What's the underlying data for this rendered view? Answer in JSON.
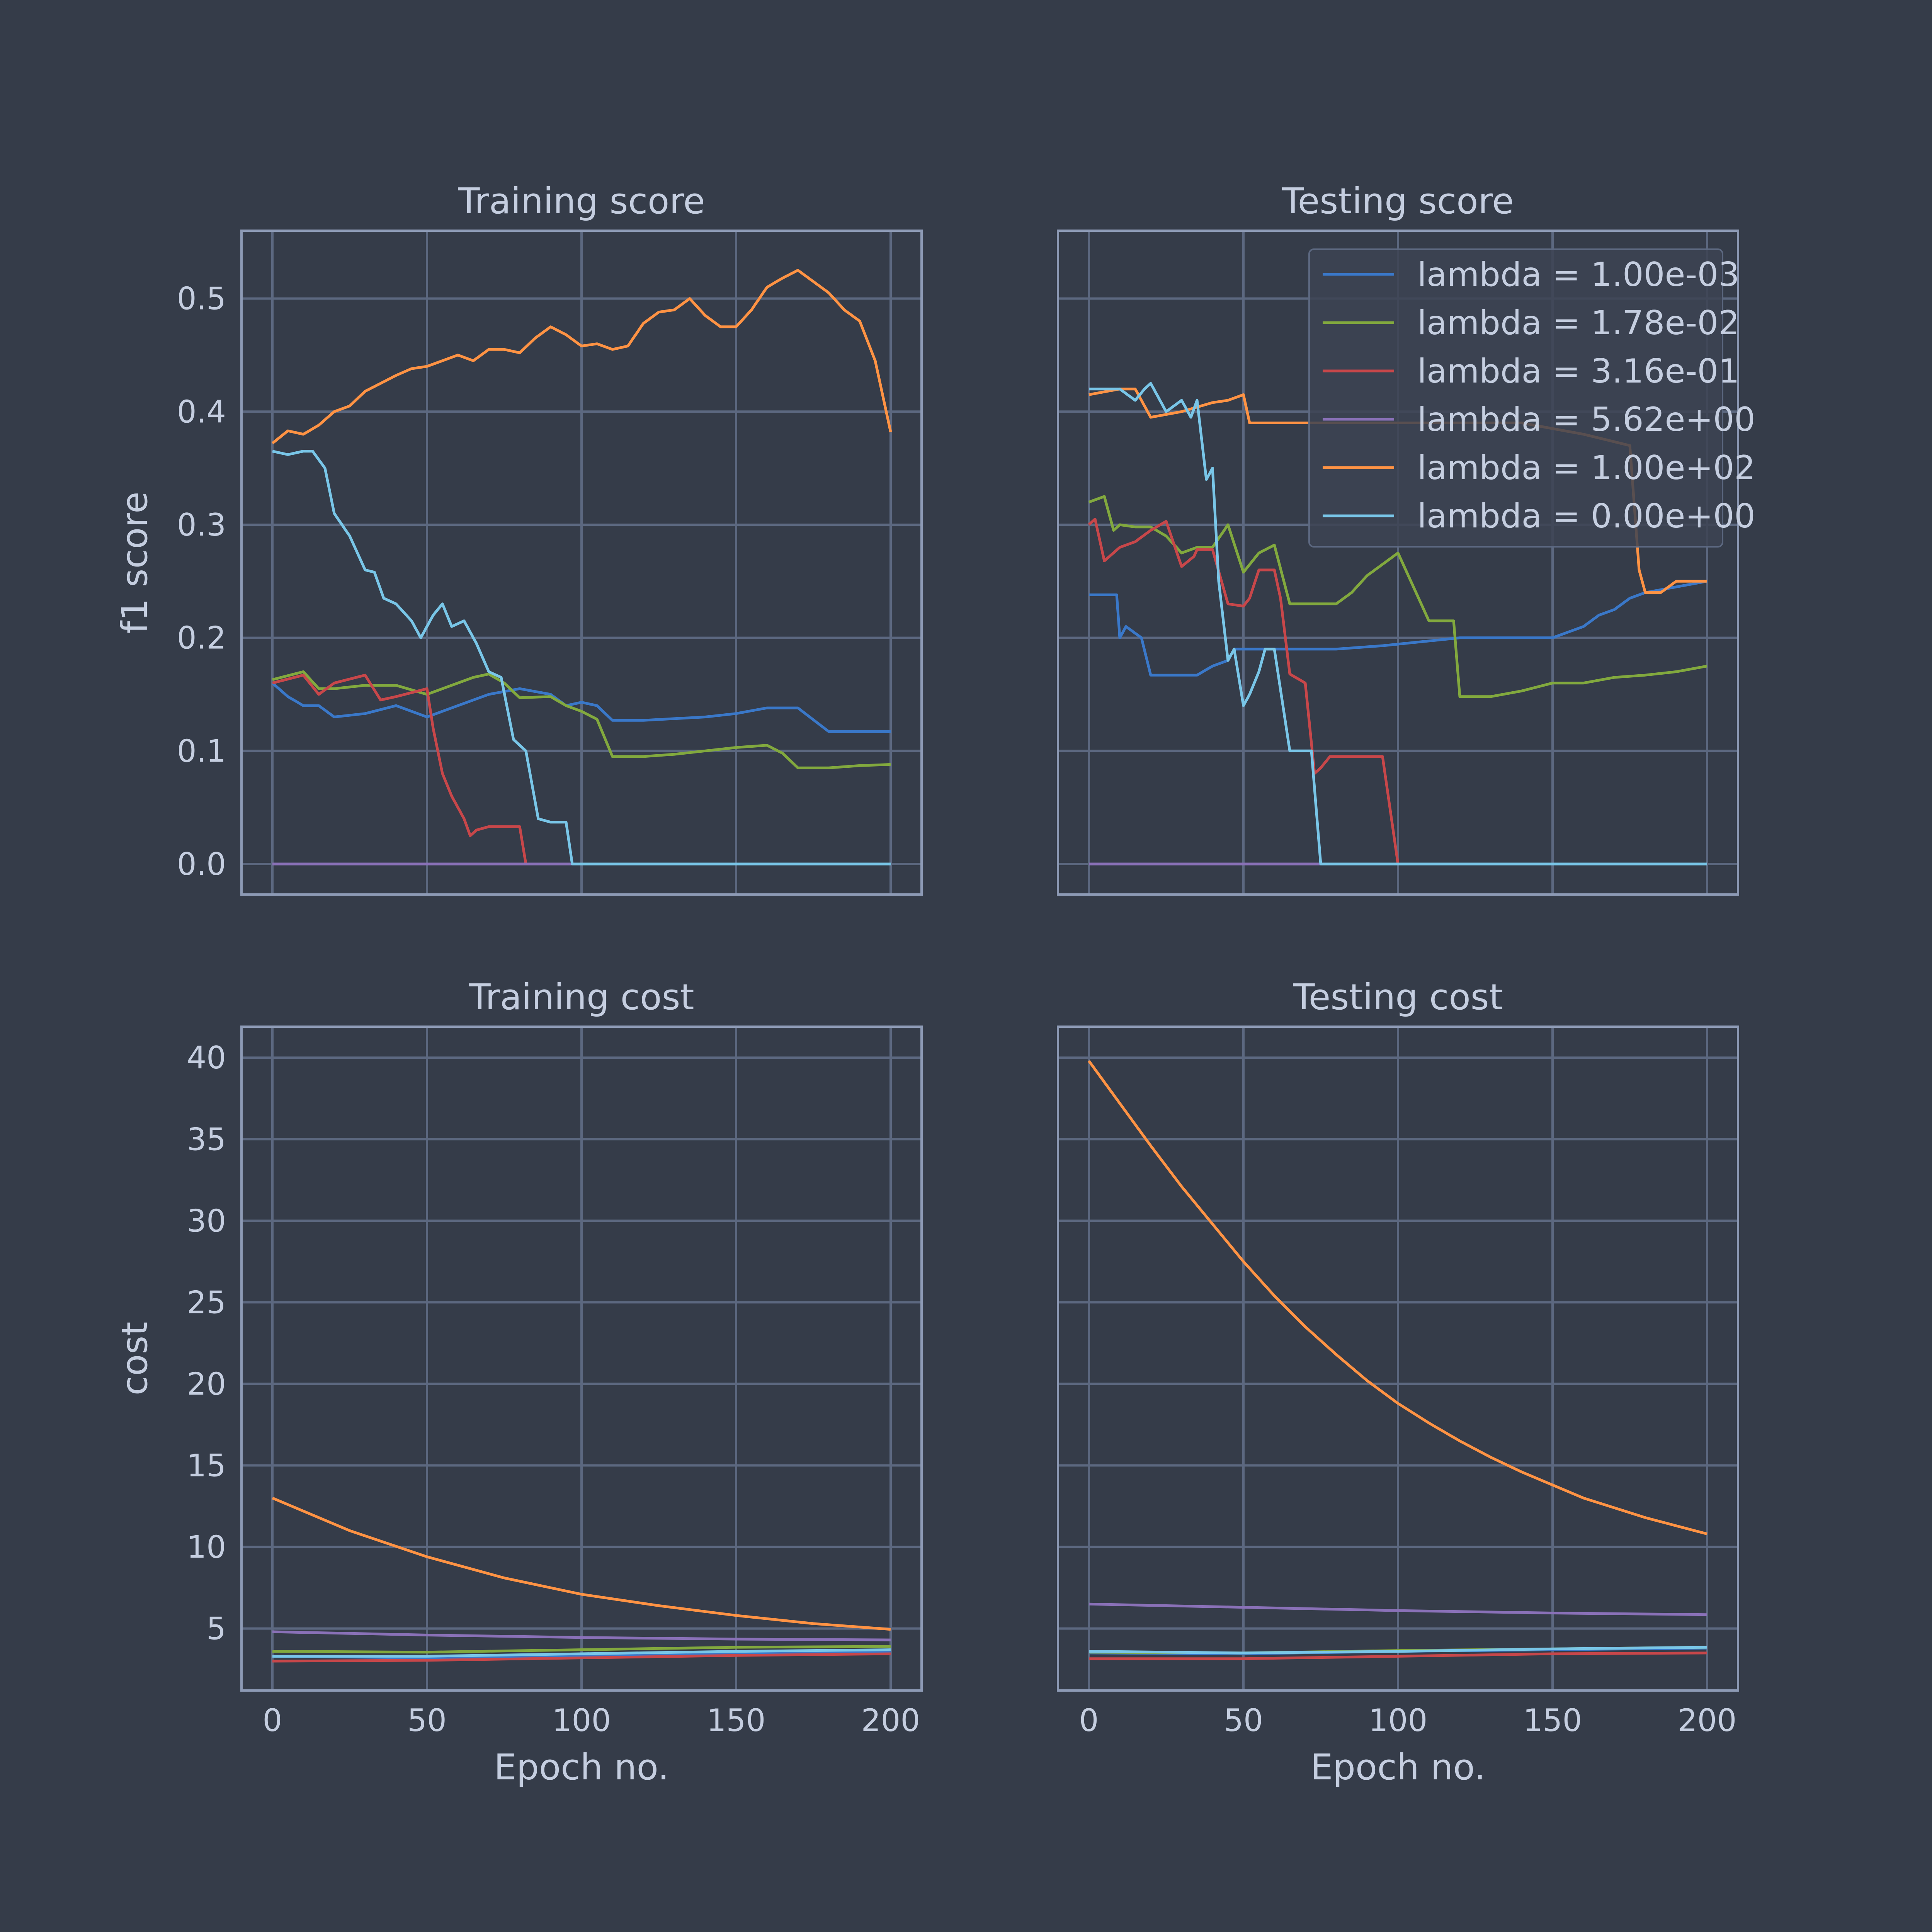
{
  "figure": {
    "background": "#353c49",
    "axes_background": "#353c49",
    "grid_color": "#5c6880",
    "spine_color": "#8d9ab5",
    "text_color": "#c5cee0"
  },
  "series_styles": [
    {
      "name": "lambda = 1.00e-03",
      "color": "#3a78c9"
    },
    {
      "name": "lambda = 1.78e-02",
      "color": "#82a93e"
    },
    {
      "name": "lambda = 3.16e-01",
      "color": "#c8474a"
    },
    {
      "name": "lambda = 5.62e+00",
      "color": "#8a71b8"
    },
    {
      "name": "lambda = 1.00e+02",
      "color": "#ff9344"
    },
    {
      "name": "lambda = 0.00e+00",
      "color": "#79c6e8"
    }
  ],
  "chart_data": [
    {
      "type": "line",
      "title": "Training score",
      "xlabel": "",
      "ylabel": "f1 score",
      "xlim": [
        -10,
        210
      ],
      "ylim": [
        -0.027,
        0.56
      ],
      "xticks": [
        0,
        50,
        100,
        150,
        200
      ],
      "xtick_labels": [],
      "yticks": [
        0.0,
        0.1,
        0.2,
        0.3,
        0.4,
        0.5
      ],
      "ytick_labels": [
        "0.0",
        "0.1",
        "0.2",
        "0.3",
        "0.4",
        "0.5"
      ],
      "grid": true,
      "legend": null,
      "series": [
        {
          "x": [
            0,
            5,
            10,
            15,
            20,
            30,
            40,
            50,
            60,
            70,
            80,
            90,
            95,
            100,
            105,
            110,
            120,
            140,
            150,
            160,
            170,
            180,
            190,
            200
          ],
          "y": [
            0.16,
            0.148,
            0.14,
            0.14,
            0.13,
            0.133,
            0.14,
            0.13,
            0.14,
            0.15,
            0.155,
            0.15,
            0.14,
            0.143,
            0.14,
            0.127,
            0.127,
            0.13,
            0.133,
            0.138,
            0.138,
            0.117,
            0.117,
            0.117
          ]
        },
        {
          "x": [
            0,
            10,
            15,
            20,
            30,
            40,
            50,
            60,
            65,
            70,
            75,
            80,
            90,
            95,
            100,
            105,
            110,
            120,
            130,
            140,
            150,
            160,
            165,
            170,
            180,
            190,
            200
          ],
          "y": [
            0.163,
            0.17,
            0.155,
            0.155,
            0.158,
            0.158,
            0.15,
            0.16,
            0.165,
            0.168,
            0.16,
            0.147,
            0.148,
            0.14,
            0.135,
            0.128,
            0.095,
            0.095,
            0.097,
            0.1,
            0.103,
            0.105,
            0.098,
            0.085,
            0.085,
            0.087,
            0.088
          ]
        },
        {
          "x": [
            0,
            10,
            15,
            20,
            30,
            35,
            40,
            50,
            52,
            55,
            58,
            60,
            62,
            64,
            66,
            70,
            75,
            80,
            82
          ],
          "y": [
            0.16,
            0.167,
            0.15,
            0.16,
            0.167,
            0.145,
            0.148,
            0.155,
            0.12,
            0.08,
            0.06,
            0.05,
            0.04,
            0.025,
            0.03,
            0.033,
            0.033,
            0.033,
            0.0
          ]
        },
        {
          "x": [
            0,
            200
          ],
          "y": [
            0.0,
            0.0
          ]
        },
        {
          "x": [
            0,
            5,
            10,
            15,
            20,
            25,
            30,
            35,
            40,
            45,
            50,
            55,
            60,
            65,
            70,
            75,
            80,
            85,
            90,
            95,
            100,
            105,
            110,
            115,
            120,
            125,
            130,
            135,
            140,
            145,
            150,
            155,
            160,
            165,
            170,
            175,
            180,
            185,
            190,
            195,
            200
          ],
          "y": [
            0.372,
            0.383,
            0.38,
            0.388,
            0.4,
            0.405,
            0.418,
            0.425,
            0.432,
            0.438,
            0.44,
            0.445,
            0.45,
            0.445,
            0.455,
            0.455,
            0.452,
            0.465,
            0.475,
            0.468,
            0.458,
            0.46,
            0.455,
            0.458,
            0.478,
            0.488,
            0.49,
            0.5,
            0.485,
            0.475,
            0.475,
            0.49,
            0.51,
            0.518,
            0.525,
            0.515,
            0.505,
            0.49,
            0.48,
            0.445,
            0.382
          ]
        },
        {
          "x": [
            0,
            5,
            10,
            13,
            17,
            20,
            25,
            30,
            33,
            36,
            40,
            45,
            48,
            52,
            55,
            58,
            62,
            66,
            70,
            74,
            78,
            82,
            86,
            90,
            95,
            97,
            100,
            120,
            150,
            200
          ],
          "y": [
            0.365,
            0.362,
            0.365,
            0.365,
            0.35,
            0.31,
            0.29,
            0.26,
            0.258,
            0.235,
            0.23,
            0.215,
            0.2,
            0.22,
            0.23,
            0.21,
            0.215,
            0.195,
            0.17,
            0.165,
            0.11,
            0.1,
            0.04,
            0.037,
            0.037,
            0.0,
            0.0,
            0.0,
            0.0,
            0.0
          ]
        }
      ]
    },
    {
      "type": "line",
      "title": "Testing score",
      "xlabel": "",
      "ylabel": "",
      "xlim": [
        -10,
        210
      ],
      "ylim": [
        -0.027,
        0.56
      ],
      "xticks": [
        0,
        50,
        100,
        150,
        200
      ],
      "xtick_labels": [],
      "yticks": [
        0.0,
        0.1,
        0.2,
        0.3,
        0.4,
        0.5
      ],
      "ytick_labels": [],
      "grid": true,
      "legend": "upper right",
      "series": [
        {
          "x": [
            0,
            9,
            10,
            12,
            17,
            20,
            25,
            35,
            40,
            45,
            47,
            50,
            55,
            60,
            65,
            80,
            90,
            95,
            120,
            150,
            160,
            165,
            170,
            175,
            180,
            200
          ],
          "y": [
            0.238,
            0.238,
            0.2,
            0.21,
            0.2,
            0.167,
            0.167,
            0.167,
            0.175,
            0.18,
            0.19,
            0.19,
            0.19,
            0.19,
            0.19,
            0.19,
            0.192,
            0.193,
            0.2,
            0.2,
            0.21,
            0.22,
            0.225,
            0.235,
            0.24,
            0.25
          ]
        },
        {
          "x": [
            0,
            5,
            8,
            10,
            15,
            20,
            25,
            30,
            35,
            40,
            45,
            50,
            55,
            60,
            65,
            80,
            85,
            90,
            95,
            100,
            110,
            115,
            118,
            120,
            130,
            140,
            150,
            160,
            170,
            180,
            190,
            200
          ],
          "y": [
            0.32,
            0.325,
            0.295,
            0.3,
            0.298,
            0.298,
            0.29,
            0.275,
            0.28,
            0.28,
            0.3,
            0.258,
            0.275,
            0.282,
            0.23,
            0.23,
            0.24,
            0.255,
            0.265,
            0.275,
            0.215,
            0.215,
            0.215,
            0.148,
            0.148,
            0.153,
            0.16,
            0.16,
            0.165,
            0.167,
            0.17,
            0.175
          ]
        },
        {
          "x": [
            0,
            2,
            5,
            10,
            15,
            20,
            25,
            30,
            34,
            35,
            40,
            45,
            50,
            52,
            55,
            60,
            62,
            65,
            70,
            73,
            75,
            78,
            82,
            85,
            90,
            95,
            100,
            200
          ],
          "y": [
            0.3,
            0.305,
            0.268,
            0.28,
            0.285,
            0.295,
            0.303,
            0.263,
            0.272,
            0.278,
            0.278,
            0.23,
            0.228,
            0.235,
            0.26,
            0.26,
            0.235,
            0.168,
            0.16,
            0.08,
            0.085,
            0.095,
            0.095,
            0.095,
            0.095,
            0.095,
            0.0,
            0.0
          ]
        },
        {
          "x": [
            0,
            200
          ],
          "y": [
            0.0,
            0.0
          ]
        },
        {
          "x": [
            0,
            10,
            15,
            20,
            30,
            40,
            45,
            50,
            52,
            60,
            80,
            100,
            120,
            140,
            160,
            175,
            178,
            180,
            185,
            190,
            200
          ],
          "y": [
            0.415,
            0.42,
            0.42,
            0.395,
            0.4,
            0.408,
            0.41,
            0.415,
            0.39,
            0.39,
            0.39,
            0.39,
            0.39,
            0.39,
            0.38,
            0.37,
            0.26,
            0.24,
            0.24,
            0.25,
            0.25
          ]
        },
        {
          "x": [
            0,
            5,
            10,
            15,
            18,
            20,
            25,
            30,
            33,
            35,
            38,
            40,
            42,
            45,
            47,
            50,
            52,
            55,
            57,
            60,
            65,
            70,
            72,
            75,
            80,
            100,
            150,
            200
          ],
          "y": [
            0.42,
            0.42,
            0.42,
            0.41,
            0.42,
            0.425,
            0.4,
            0.41,
            0.395,
            0.41,
            0.34,
            0.35,
            0.25,
            0.18,
            0.19,
            0.14,
            0.15,
            0.17,
            0.19,
            0.19,
            0.1,
            0.1,
            0.1,
            0.0,
            0.0,
            0.0,
            0.0,
            0.0
          ]
        }
      ]
    },
    {
      "type": "line",
      "title": "Training cost",
      "xlabel": "Epoch no.",
      "ylabel": "cost",
      "xlim": [
        -10,
        210
      ],
      "ylim": [
        1.2,
        41.9
      ],
      "xticks": [
        0,
        50,
        100,
        150,
        200
      ],
      "xtick_labels": [
        "0",
        "50",
        "100",
        "150",
        "200"
      ],
      "yticks": [
        5,
        10,
        15,
        20,
        25,
        30,
        35,
        40
      ],
      "ytick_labels": [
        "5",
        "10",
        "15",
        "20",
        "25",
        "30",
        "35",
        "40"
      ],
      "grid": true,
      "legend": null,
      "series": [
        {
          "x": [
            0,
            50,
            100,
            150,
            200
          ],
          "y": [
            3.3,
            3.2,
            3.35,
            3.5,
            3.6
          ]
        },
        {
          "x": [
            0,
            50,
            100,
            150,
            200
          ],
          "y": [
            3.6,
            3.55,
            3.7,
            3.85,
            3.9
          ]
        },
        {
          "x": [
            0,
            50,
            100,
            150,
            200
          ],
          "y": [
            3.0,
            3.05,
            3.2,
            3.35,
            3.45
          ]
        },
        {
          "x": [
            0,
            50,
            100,
            150,
            200
          ],
          "y": [
            4.8,
            4.6,
            4.45,
            4.35,
            4.3
          ]
        },
        {
          "x": [
            0,
            25,
            50,
            75,
            100,
            125,
            150,
            175,
            200
          ],
          "y": [
            13.0,
            11.0,
            9.4,
            8.1,
            7.1,
            6.4,
            5.8,
            5.3,
            4.95
          ]
        },
        {
          "x": [
            0,
            50,
            100,
            150,
            200
          ],
          "y": [
            3.3,
            3.3,
            3.45,
            3.6,
            3.7
          ]
        }
      ]
    },
    {
      "type": "line",
      "title": "Testing cost",
      "xlabel": "Epoch no.",
      "ylabel": "",
      "xlim": [
        -10,
        210
      ],
      "ylim": [
        1.2,
        41.9
      ],
      "xticks": [
        0,
        50,
        100,
        150,
        200
      ],
      "xtick_labels": [
        "0",
        "50",
        "100",
        "150",
        "200"
      ],
      "yticks": [
        5,
        10,
        15,
        20,
        25,
        30,
        35,
        40
      ],
      "ytick_labels": [],
      "grid": true,
      "legend": null,
      "series": [
        {
          "x": [
            0,
            50,
            100,
            150,
            200
          ],
          "y": [
            3.5,
            3.45,
            3.6,
            3.7,
            3.8
          ]
        },
        {
          "x": [
            0,
            50,
            100,
            150,
            200
          ],
          "y": [
            3.55,
            3.5,
            3.65,
            3.75,
            3.85
          ]
        },
        {
          "x": [
            0,
            50,
            100,
            150,
            200
          ],
          "y": [
            3.15,
            3.15,
            3.3,
            3.45,
            3.5
          ]
        },
        {
          "x": [
            0,
            50,
            100,
            150,
            200
          ],
          "y": [
            6.5,
            6.3,
            6.1,
            5.95,
            5.85
          ]
        },
        {
          "x": [
            0,
            10,
            20,
            30,
            40,
            50,
            60,
            70,
            80,
            90,
            100,
            110,
            120,
            130,
            140,
            150,
            160,
            170,
            180,
            190,
            200
          ],
          "y": [
            39.8,
            37.2,
            34.6,
            32.1,
            29.8,
            27.5,
            25.4,
            23.5,
            21.8,
            20.2,
            18.8,
            17.6,
            16.5,
            15.5,
            14.6,
            13.8,
            13.0,
            12.4,
            11.8,
            11.3,
            10.8
          ]
        },
        {
          "x": [
            0,
            50,
            100,
            150,
            200
          ],
          "y": [
            3.6,
            3.5,
            3.6,
            3.75,
            3.85
          ]
        }
      ]
    }
  ]
}
